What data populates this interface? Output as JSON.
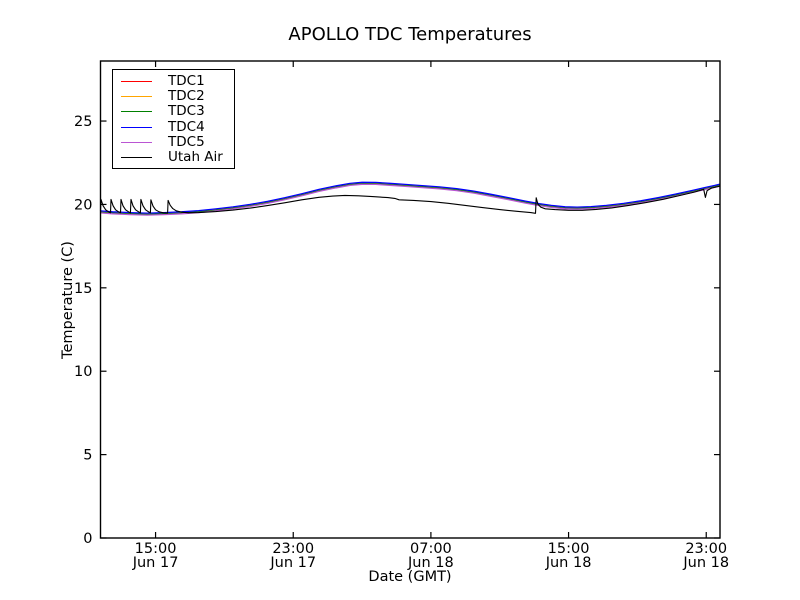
{
  "chart_data": {
    "type": "line",
    "title": "APOLLO TDC Temperatures",
    "xlabel": "Date (GMT)",
    "ylabel": "Temperature (C)",
    "x_encoding": "hours since Jun 17 00:00 GMT",
    "xlim": [
      11.8,
      47.8
    ],
    "ylim": [
      0,
      28.6
    ],
    "grid": false,
    "legend_position": "upper left",
    "xticks": [
      {
        "value": 15,
        "time": "15:00",
        "date": "Jun 17"
      },
      {
        "value": 23,
        "time": "23:00",
        "date": "Jun 17"
      },
      {
        "value": 31,
        "time": "07:00",
        "date": "Jun 18"
      },
      {
        "value": 39,
        "time": "15:00",
        "date": "Jun 18"
      },
      {
        "value": 47,
        "time": "23:00",
        "date": "Jun 18"
      }
    ],
    "yticks": [
      0,
      5,
      10,
      15,
      20,
      25
    ],
    "series": [
      {
        "name": "TDC1",
        "color": "#ff0000",
        "offset": 0.0,
        "base": "tdc_base_points"
      },
      {
        "name": "TDC2",
        "color": "#ffa500",
        "offset": 0.03,
        "base": "tdc_base_points"
      },
      {
        "name": "TDC3",
        "color": "#008000",
        "offset": -0.02,
        "base": "tdc_base_points"
      },
      {
        "name": "TDC4",
        "color": "#0000ff",
        "offset": 0.06,
        "base": "tdc_base_points"
      },
      {
        "name": "TDC5",
        "color": "#ba55d3",
        "offset": -0.06,
        "base": "tdc_base_points"
      },
      {
        "name": "Utah Air",
        "color": "#000000",
        "offset": 0.0,
        "base": "utah_air_points"
      }
    ],
    "tdc_base_points": [
      [
        11.8,
        19.55
      ],
      [
        12.5,
        19.5
      ],
      [
        13.5,
        19.45
      ],
      [
        14.5,
        19.42
      ],
      [
        15.5,
        19.45
      ],
      [
        16.5,
        19.5
      ],
      [
        17.5,
        19.57
      ],
      [
        18.5,
        19.67
      ],
      [
        19.5,
        19.79
      ],
      [
        20.5,
        19.94
      ],
      [
        21.5,
        20.12
      ],
      [
        22.5,
        20.34
      ],
      [
        23.5,
        20.58
      ],
      [
        24.5,
        20.84
      ],
      [
        25.5,
        21.06
      ],
      [
        26.3,
        21.2
      ],
      [
        27.0,
        21.27
      ],
      [
        27.8,
        21.26
      ],
      [
        28.6,
        21.21
      ],
      [
        29.5,
        21.14
      ],
      [
        30.5,
        21.07
      ],
      [
        31.5,
        20.99
      ],
      [
        32.5,
        20.89
      ],
      [
        33.5,
        20.74
      ],
      [
        34.5,
        20.55
      ],
      [
        35.5,
        20.35
      ],
      [
        36.5,
        20.14
      ],
      [
        37.3,
        19.99
      ],
      [
        38.0,
        19.88
      ],
      [
        38.8,
        19.8
      ],
      [
        39.5,
        19.78
      ],
      [
        40.3,
        19.81
      ],
      [
        41.2,
        19.88
      ],
      [
        42.2,
        20.0
      ],
      [
        43.2,
        20.16
      ],
      [
        44.2,
        20.35
      ],
      [
        45.2,
        20.56
      ],
      [
        46.2,
        20.78
      ],
      [
        47.0,
        20.97
      ],
      [
        47.5,
        21.08
      ],
      [
        47.8,
        21.16
      ]
    ],
    "utah_air_points": [
      [
        11.8,
        19.62
      ],
      [
        11.83,
        20.3
      ],
      [
        11.95,
        19.92
      ],
      [
        12.1,
        19.68
      ],
      [
        12.28,
        19.55
      ],
      [
        12.38,
        19.5
      ],
      [
        12.41,
        20.3
      ],
      [
        12.53,
        19.92
      ],
      [
        12.68,
        19.68
      ],
      [
        12.86,
        19.55
      ],
      [
        12.96,
        19.5
      ],
      [
        12.99,
        20.3
      ],
      [
        13.11,
        19.92
      ],
      [
        13.26,
        19.68
      ],
      [
        13.44,
        19.55
      ],
      [
        13.54,
        19.5
      ],
      [
        13.57,
        20.3
      ],
      [
        13.69,
        19.92
      ],
      [
        13.84,
        19.68
      ],
      [
        14.02,
        19.55
      ],
      [
        14.12,
        19.5
      ],
      [
        14.15,
        20.3
      ],
      [
        14.27,
        19.92
      ],
      [
        14.42,
        19.68
      ],
      [
        14.6,
        19.55
      ],
      [
        14.7,
        19.5
      ],
      [
        14.73,
        20.28
      ],
      [
        14.85,
        19.9
      ],
      [
        15.0,
        19.68
      ],
      [
        15.2,
        19.56
      ],
      [
        15.45,
        19.5
      ],
      [
        15.7,
        19.48
      ],
      [
        15.73,
        20.24
      ],
      [
        15.85,
        19.95
      ],
      [
        16.0,
        19.75
      ],
      [
        16.2,
        19.62
      ],
      [
        16.5,
        19.54
      ],
      [
        16.9,
        19.5
      ],
      [
        17.5,
        19.51
      ],
      [
        18.5,
        19.57
      ],
      [
        19.5,
        19.66
      ],
      [
        20.5,
        19.78
      ],
      [
        21.5,
        19.93
      ],
      [
        22.5,
        20.1
      ],
      [
        23.5,
        20.28
      ],
      [
        24.5,
        20.43
      ],
      [
        25.3,
        20.5
      ],
      [
        26.0,
        20.54
      ],
      [
        26.8,
        20.52
      ],
      [
        27.6,
        20.47
      ],
      [
        28.5,
        20.41
      ],
      [
        28.9,
        20.36
      ],
      [
        29.15,
        20.28
      ],
      [
        30.0,
        20.24
      ],
      [
        31.0,
        20.17
      ],
      [
        32.0,
        20.07
      ],
      [
        33.0,
        19.94
      ],
      [
        34.0,
        19.81
      ],
      [
        35.0,
        19.69
      ],
      [
        36.0,
        19.59
      ],
      [
        36.8,
        19.51
      ],
      [
        37.08,
        19.47
      ],
      [
        37.12,
        20.4
      ],
      [
        37.22,
        20.02
      ],
      [
        37.38,
        19.84
      ],
      [
        37.65,
        19.74
      ],
      [
        38.2,
        19.69
      ],
      [
        39.0,
        19.65
      ],
      [
        39.8,
        19.65
      ],
      [
        40.6,
        19.7
      ],
      [
        41.5,
        19.79
      ],
      [
        42.5,
        19.94
      ],
      [
        43.5,
        20.11
      ],
      [
        44.5,
        20.31
      ],
      [
        45.5,
        20.54
      ],
      [
        46.3,
        20.74
      ],
      [
        46.85,
        20.9
      ],
      [
        46.95,
        20.42
      ],
      [
        47.05,
        20.83
      ],
      [
        47.3,
        20.98
      ],
      [
        47.6,
        21.05
      ],
      [
        47.8,
        21.1
      ]
    ]
  }
}
